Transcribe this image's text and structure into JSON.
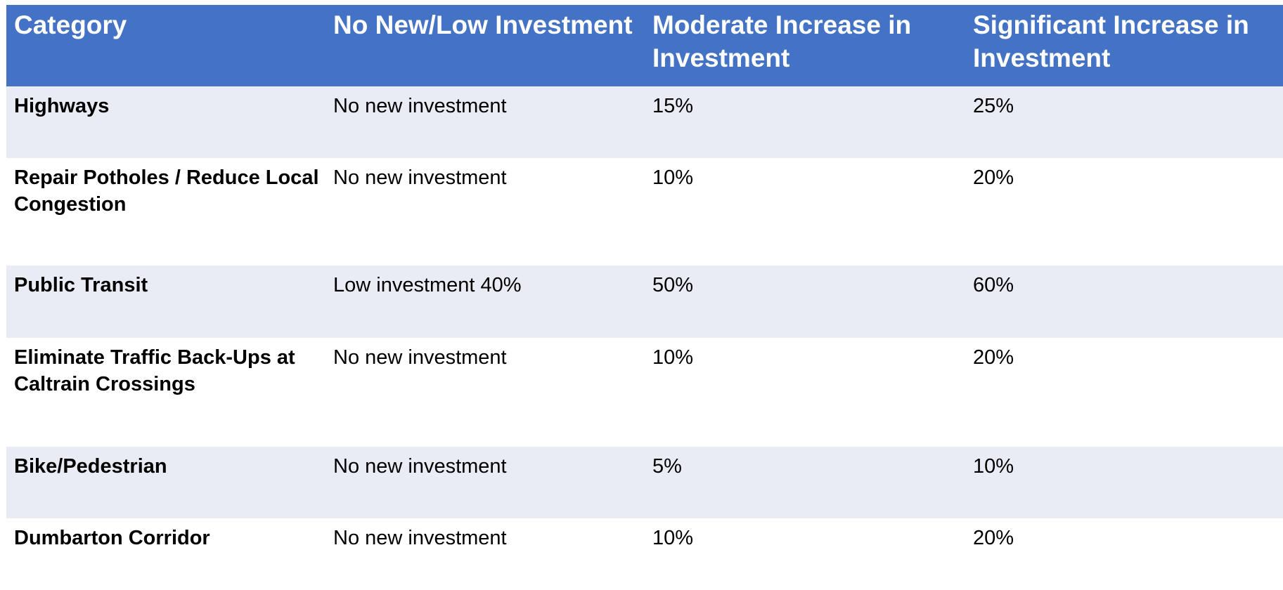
{
  "table": {
    "header": [
      "Category",
      "No New/Low Investment",
      "Moderate Increase in Investment",
      "Significant Increase in Investment"
    ],
    "rows": [
      [
        "Highways",
        "No new investment",
        "15%",
        "25%"
      ],
      [
        "Repair Potholes / Reduce Local Congestion",
        "No new investment",
        "10%",
        "20%"
      ],
      [
        "Public Transit",
        "Low investment 40%",
        "50%",
        "60%"
      ],
      [
        "Eliminate Traffic Back-Ups at Caltrain Crossings",
        "No new investment",
        "10%",
        "20%"
      ],
      [
        "Bike/Pedestrian",
        "No new investment",
        "5%",
        "10%"
      ],
      [
        "Dumbarton Corridor",
        "No new investment",
        "10%",
        "20%"
      ]
    ]
  }
}
